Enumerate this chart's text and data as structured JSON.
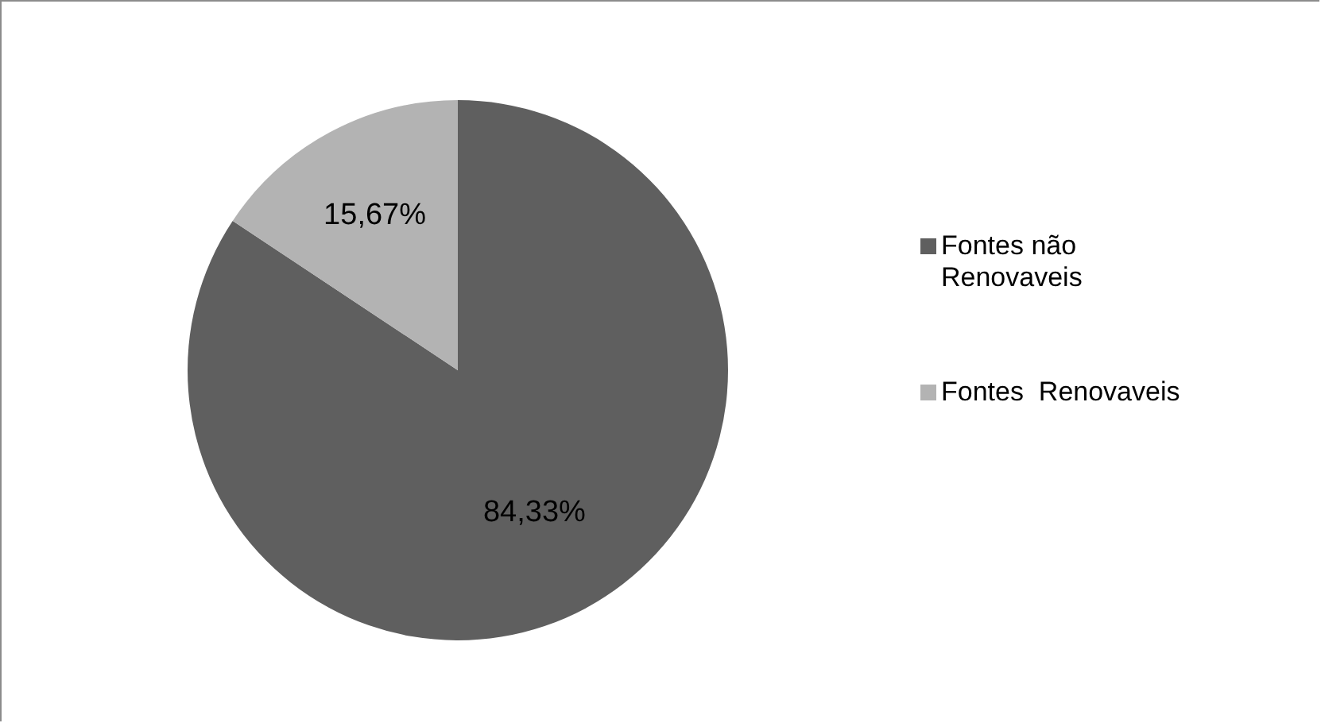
{
  "chart_data": {
    "type": "pie",
    "categories": [
      "Fontes não Renovaveis",
      "Fontes  Renovaveis"
    ],
    "values": [
      84.33,
      15.67
    ],
    "colors": [
      "#5f5f5f",
      "#b3b3b3"
    ],
    "value_labels": [
      "84,33%",
      "15,67%"
    ],
    "legend": "right"
  }
}
